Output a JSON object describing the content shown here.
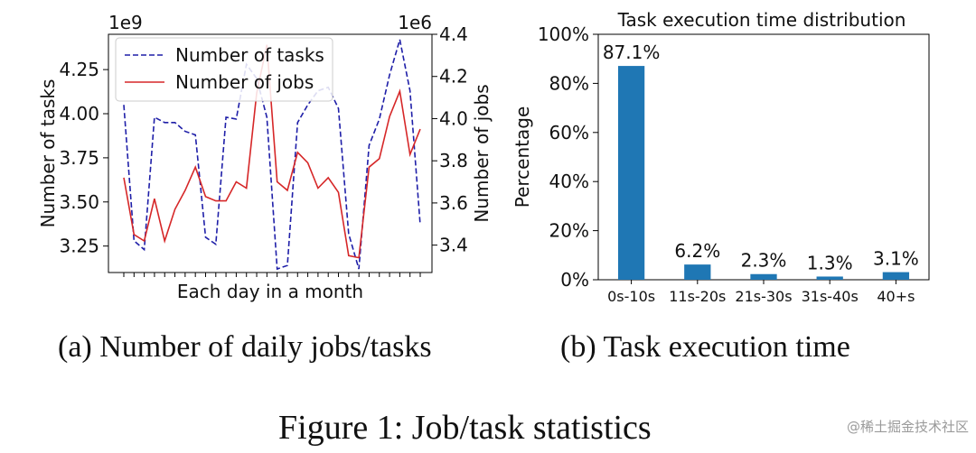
{
  "figure_caption": "Figure 1: Job/task statistics",
  "watermark": "@稀土掘金技术社区",
  "chart_data": [
    {
      "type": "line",
      "subcaption": "(a) Number of daily jobs/tasks",
      "title": "",
      "xlabel": "Each day in a month",
      "ylabel_left": "Number of tasks",
      "ylabel_right": "Number of jobs",
      "offset_left": "1e9",
      "offset_right": "1e6",
      "ylim_left": [
        3.1,
        4.45
      ],
      "ylim_right": [
        3.27,
        4.4
      ],
      "yticks_left": [
        "3.25",
        "3.50",
        "3.75",
        "4.00",
        "4.25"
      ],
      "yticks_right": [
        "3.4",
        "3.6",
        "3.8",
        "4.0",
        "4.2",
        "4.4"
      ],
      "x": [
        1,
        2,
        3,
        4,
        5,
        6,
        7,
        8,
        9,
        10,
        11,
        12,
        13,
        14,
        15,
        16,
        17,
        18,
        19,
        20,
        21,
        22,
        23,
        24,
        25,
        26,
        27,
        28,
        29,
        30
      ],
      "legend_position": "upper-left",
      "grid": false,
      "series": [
        {
          "name": "Number of tasks",
          "axis": "left",
          "style": "dashed",
          "color": "#1f1fa8",
          "values": [
            4.05,
            3.28,
            3.23,
            3.98,
            3.95,
            3.95,
            3.9,
            3.88,
            3.3,
            3.26,
            3.98,
            3.97,
            4.28,
            4.2,
            3.98,
            3.12,
            3.14,
            3.95,
            4.05,
            4.13,
            4.15,
            4.03,
            3.32,
            3.12,
            3.82,
            3.97,
            4.22,
            4.42,
            4.13,
            3.37
          ]
        },
        {
          "name": "Number of jobs",
          "axis": "right",
          "style": "solid",
          "color": "#d62728",
          "values": [
            3.72,
            3.45,
            3.42,
            3.62,
            3.42,
            3.57,
            3.66,
            3.77,
            3.63,
            3.61,
            3.61,
            3.7,
            3.67,
            4.12,
            4.35,
            3.7,
            3.66,
            3.84,
            3.79,
            3.67,
            3.72,
            3.65,
            3.35,
            3.34,
            3.77,
            3.81,
            4.01,
            4.13,
            3.83,
            3.95
          ]
        }
      ]
    },
    {
      "type": "bar",
      "subcaption": "(b) Task execution time",
      "title": "Task execution time distribution",
      "xlabel": "",
      "ylabel": "Percentage",
      "ylim": [
        0,
        100
      ],
      "yticks": [
        "0%",
        "20%",
        "40%",
        "60%",
        "80%",
        "100%"
      ],
      "categories": [
        "0s-10s",
        "11s-20s",
        "21s-30s",
        "31s-40s",
        "40+s"
      ],
      "values": [
        87.1,
        6.2,
        2.3,
        1.3,
        3.1
      ],
      "data_labels": [
        "87.1%",
        "6.2%",
        "2.3%",
        "1.3%",
        "3.1%"
      ],
      "color": "#1f77b4",
      "grid": false
    }
  ]
}
